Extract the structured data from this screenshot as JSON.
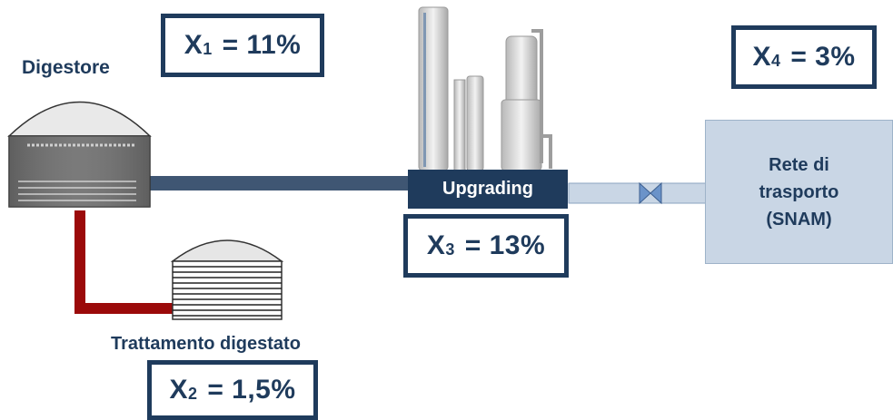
{
  "labels": {
    "digestore": "Digestore",
    "trattamento": "Trattamento digestato",
    "upgrading": "Upgrading",
    "rete": [
      "Rete di",
      "trasporto",
      "(SNAM)"
    ]
  },
  "boxes": {
    "x1": {
      "var": "X",
      "sub": "1",
      "value": "= 11%"
    },
    "x2": {
      "var": "X",
      "sub": "2",
      "value": "= 1,5%"
    },
    "x3": {
      "var": "X",
      "sub": "3",
      "value": "= 13%"
    },
    "x4": {
      "var": "X",
      "sub": "4",
      "value": "= 3%"
    }
  },
  "colors": {
    "navy": "#1f3b5c",
    "gas_line": "#3f5673",
    "digestate_line": "#9b0a0a",
    "network_fill": "#c9d6e5"
  },
  "icons": {
    "digester": "digester-tank-icon",
    "digestate": "digestate-tank-icon",
    "plant": "upgrading-plant-icon",
    "valve": "valve-icon"
  }
}
